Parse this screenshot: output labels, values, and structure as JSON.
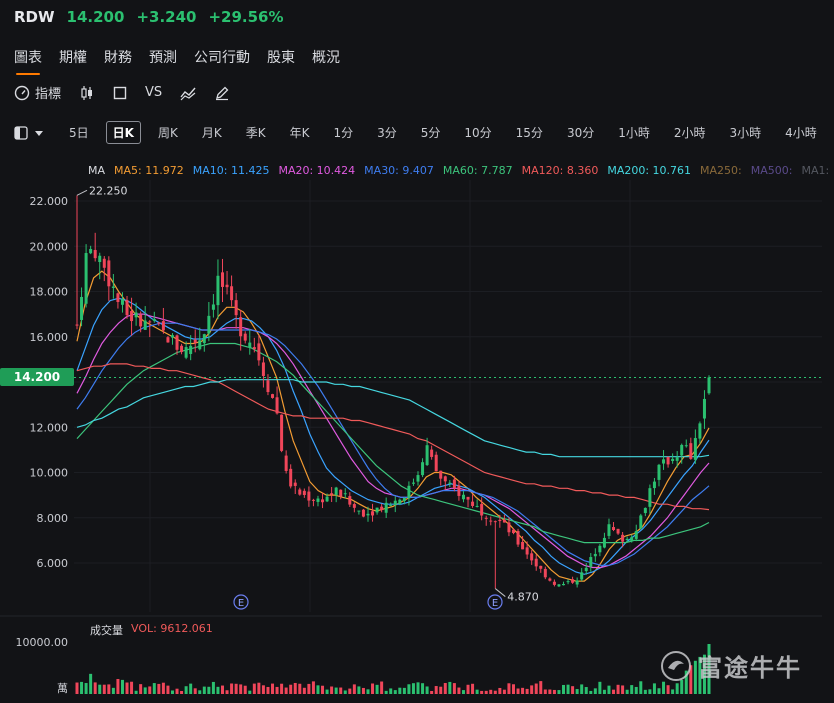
{
  "header": {
    "ticker": "RDW",
    "price": "14.200",
    "change": "+3.240",
    "change_pct": "+29.56%"
  },
  "tabs": [
    {
      "label": "圖表",
      "active": true
    },
    {
      "label": "期權"
    },
    {
      "label": "財務"
    },
    {
      "label": "預測"
    },
    {
      "label": "公司行動"
    },
    {
      "label": "股東"
    },
    {
      "label": "概況"
    }
  ],
  "toolbar": {
    "indicators": "指標",
    "vs": "VS"
  },
  "periods": [
    "5日",
    "日K",
    "周K",
    "月K",
    "季K",
    "年K",
    "1分",
    "3分",
    "5分",
    "10分",
    "15分",
    "30分",
    "1小時",
    "2小時",
    "3小時",
    "4小時"
  ],
  "active_period": "日K",
  "ma_legend": [
    {
      "label": "MA",
      "color": "#d9dbe0"
    },
    {
      "label": "MA5: 11.972",
      "color": "#f39c33"
    },
    {
      "label": "MA10: 11.425",
      "color": "#3aa3ff"
    },
    {
      "label": "MA20: 10.424",
      "color": "#e05ae0"
    },
    {
      "label": "MA30: 9.407",
      "color": "#3e7df0"
    },
    {
      "label": "MA60: 7.787",
      "color": "#3cc47c"
    },
    {
      "label": "MA120: 8.360",
      "color": "#f05a5a"
    },
    {
      "label": "MA200: 10.761",
      "color": "#45d7e0"
    },
    {
      "label": "MA250:",
      "color": "#8a6a3a"
    },
    {
      "label": "MA500:",
      "color": "#5a4a8a"
    },
    {
      "label": "MA1:",
      "color": "#555860"
    }
  ],
  "volume_legend": {
    "label": "成交量",
    "vol": "VOL: 9612.061"
  },
  "price_tag": "14.200",
  "annotations": {
    "high": "22.250",
    "low": "4.870",
    "earnings_marker": "E"
  },
  "volume_axis": {
    "tick": "10000.00",
    "unit": "萬"
  },
  "watermark": "富途牛牛",
  "chart_data": {
    "type": "candlestick",
    "y_ticks": [
      "22.000",
      "20.000",
      "18.000",
      "16.000",
      "14.000",
      "12.000",
      "10.000",
      "8.000",
      "6.000"
    ],
    "ylim": [
      4.5,
      23
    ],
    "high": 22.25,
    "low": 4.87,
    "last": 14.2,
    "close_path": [
      16.5,
      19.5,
      20.0,
      19.2,
      18.5,
      17.5,
      17.0,
      16.8,
      16.5,
      16.6,
      16.2,
      16.0,
      15.6,
      15.4,
      15.8,
      16.0,
      17.2,
      18.6,
      17.8,
      16.8,
      16.2,
      15.8,
      15.0,
      13.8,
      12.8,
      10.0,
      9.3,
      9.0,
      8.9,
      8.8,
      8.9,
      9.2,
      9.0,
      8.5,
      8.3,
      8.2,
      8.4,
      8.6,
      8.7,
      8.9,
      9.3,
      10.0,
      11.2,
      10.2,
      9.6,
      9.3,
      9.1,
      8.8,
      8.5,
      8.2,
      8.0,
      7.8,
      7.4,
      6.9,
      6.5,
      6.0,
      5.6,
      5.2,
      5.0,
      5.1,
      5.3,
      5.6,
      6.3,
      7.0,
      7.6,
      7.2,
      7.0,
      7.4,
      8.2,
      9.4,
      10.2,
      10.5,
      10.8,
      11.2,
      10.6,
      12.5,
      14.2
    ],
    "ma": {
      "MA5": [
        15.8,
        17.5,
        18.6,
        18.9,
        18.6,
        18.0,
        17.5,
        17.0,
        16.7,
        16.5,
        16.3,
        16.1,
        15.9,
        15.7,
        15.7,
        15.8,
        16.2,
        16.9,
        17.3,
        17.3,
        17.1,
        16.6,
        16.0,
        15.1,
        14.2,
        12.7,
        11.4,
        10.5,
        9.6,
        9.2,
        9.0,
        9.0,
        8.9,
        8.8,
        8.6,
        8.4,
        8.3,
        8.4,
        8.5,
        8.7,
        8.9,
        9.3,
        9.8,
        10.0,
        10.0,
        9.9,
        9.6,
        9.3,
        8.9,
        8.6,
        8.3,
        8.0,
        7.7,
        7.3,
        6.9,
        6.5,
        6.1,
        5.7,
        5.4,
        5.3,
        5.2,
        5.2,
        5.5,
        6.0,
        6.6,
        7.0,
        7.2,
        7.3,
        7.6,
        8.2,
        8.9,
        9.6,
        10.2,
        10.7,
        10.8,
        11.3,
        11.97
      ],
      "MA10": [
        14.5,
        15.5,
        16.5,
        17.2,
        17.6,
        17.7,
        17.6,
        17.4,
        17.1,
        16.8,
        16.6,
        16.4,
        16.2,
        16.0,
        15.9,
        15.9,
        16.0,
        16.3,
        16.6,
        16.8,
        16.8,
        16.7,
        16.4,
        16.0,
        15.4,
        14.6,
        13.6,
        12.7,
        11.7,
        10.9,
        10.2,
        9.8,
        9.5,
        9.2,
        9.0,
        8.8,
        8.7,
        8.6,
        8.6,
        8.6,
        8.7,
        8.9,
        9.1,
        9.3,
        9.4,
        9.5,
        9.4,
        9.3,
        9.1,
        8.9,
        8.6,
        8.3,
        8.0,
        7.7,
        7.4,
        7.0,
        6.7,
        6.3,
        6.0,
        5.8,
        5.6,
        5.5,
        5.6,
        5.8,
        6.1,
        6.5,
        6.9,
        7.2,
        7.5,
        7.9,
        8.4,
        8.9,
        9.4,
        9.9,
        10.3,
        10.9,
        11.43
      ],
      "MA20": [
        13.5,
        14.2,
        15.0,
        15.7,
        16.2,
        16.6,
        16.9,
        17.0,
        17.0,
        16.9,
        16.8,
        16.7,
        16.6,
        16.5,
        16.4,
        16.3,
        16.3,
        16.3,
        16.4,
        16.4,
        16.4,
        16.3,
        16.2,
        16.0,
        15.7,
        15.3,
        14.8,
        14.2,
        13.6,
        13.0,
        12.4,
        11.8,
        11.2,
        10.6,
        10.1,
        9.6,
        9.3,
        9.1,
        9.0,
        8.9,
        8.9,
        8.9,
        9.0,
        9.1,
        9.2,
        9.3,
        9.3,
        9.2,
        9.1,
        9.0,
        8.8,
        8.6,
        8.4,
        8.1,
        7.8,
        7.5,
        7.2,
        6.9,
        6.6,
        6.3,
        6.1,
        5.9,
        5.8,
        5.8,
        5.9,
        6.1,
        6.3,
        6.6,
        6.9,
        7.2,
        7.6,
        8.0,
        8.5,
        9.0,
        9.5,
        10.0,
        10.42
      ],
      "MA30": [
        12.8,
        13.3,
        13.9,
        14.5,
        15.0,
        15.5,
        15.9,
        16.2,
        16.4,
        16.5,
        16.6,
        16.6,
        16.6,
        16.5,
        16.4,
        16.3,
        16.3,
        16.3,
        16.3,
        16.3,
        16.3,
        16.3,
        16.2,
        16.1,
        15.9,
        15.6,
        15.2,
        14.8,
        14.3,
        13.8,
        13.2,
        12.6,
        12.0,
        11.4,
        10.8,
        10.2,
        9.7,
        9.3,
        9.0,
        8.9,
        8.9,
        8.9,
        9.0,
        9.1,
        9.2,
        9.2,
        9.2,
        9.2,
        9.1,
        9.0,
        8.9,
        8.7,
        8.5,
        8.3,
        8.0,
        7.7,
        7.4,
        7.1,
        6.8,
        6.5,
        6.3,
        6.1,
        6.0,
        5.9,
        5.9,
        6.0,
        6.2,
        6.4,
        6.7,
        7.0,
        7.3,
        7.6,
        8.0,
        8.4,
        8.8,
        9.1,
        9.41
      ],
      "MA60": [
        11.5,
        11.9,
        12.3,
        12.7,
        13.1,
        13.5,
        13.9,
        14.2,
        14.5,
        14.7,
        14.9,
        15.1,
        15.3,
        15.4,
        15.5,
        15.6,
        15.7,
        15.7,
        15.7,
        15.7,
        15.6,
        15.5,
        15.3,
        15.1,
        14.9,
        14.6,
        14.3,
        13.9,
        13.5,
        13.1,
        12.7,
        12.3,
        11.9,
        11.5,
        11.1,
        10.7,
        10.3,
        10.0,
        9.7,
        9.4,
        9.2,
        9.0,
        8.9,
        8.8,
        8.7,
        8.6,
        8.5,
        8.4,
        8.3,
        8.2,
        8.1,
        8.0,
        7.9,
        7.8,
        7.7,
        7.6,
        7.4,
        7.3,
        7.2,
        7.1,
        7.0,
        6.9,
        6.9,
        6.9,
        6.9,
        6.9,
        6.9,
        7.0,
        7.0,
        7.1,
        7.1,
        7.2,
        7.3,
        7.4,
        7.5,
        7.6,
        7.79
      ],
      "MA120": [
        14.5,
        14.6,
        14.7,
        14.7,
        14.8,
        14.8,
        14.8,
        14.7,
        14.7,
        14.6,
        14.6,
        14.5,
        14.5,
        14.4,
        14.3,
        14.2,
        14.1,
        14.0,
        13.8,
        13.6,
        13.4,
        13.2,
        13.0,
        12.8,
        12.7,
        12.6,
        12.5,
        12.5,
        12.4,
        12.4,
        12.4,
        12.4,
        12.4,
        12.3,
        12.3,
        12.2,
        12.1,
        12.0,
        11.9,
        11.8,
        11.7,
        11.5,
        11.4,
        11.2,
        11.0,
        10.8,
        10.6,
        10.4,
        10.2,
        10.0,
        9.9,
        9.8,
        9.7,
        9.6,
        9.5,
        9.5,
        9.4,
        9.4,
        9.3,
        9.3,
        9.2,
        9.2,
        9.1,
        9.1,
        9.0,
        9.0,
        8.9,
        8.9,
        8.8,
        8.7,
        8.6,
        8.6,
        8.5,
        8.5,
        8.4,
        8.4,
        8.36
      ],
      "MA200": [
        12.0,
        12.1,
        12.3,
        12.4,
        12.6,
        12.8,
        12.9,
        13.1,
        13.3,
        13.4,
        13.5,
        13.6,
        13.7,
        13.8,
        13.8,
        13.9,
        14.0,
        14.0,
        14.1,
        14.1,
        14.1,
        14.1,
        14.1,
        14.1,
        14.1,
        14.1,
        14.1,
        14.0,
        14.0,
        14.0,
        14.0,
        13.9,
        13.9,
        13.8,
        13.8,
        13.7,
        13.6,
        13.5,
        13.4,
        13.3,
        13.2,
        13.0,
        12.8,
        12.6,
        12.4,
        12.2,
        12.0,
        11.8,
        11.6,
        11.4,
        11.3,
        11.2,
        11.1,
        11.0,
        10.9,
        10.9,
        10.8,
        10.8,
        10.7,
        10.7,
        10.7,
        10.7,
        10.7,
        10.7,
        10.7,
        10.7,
        10.7,
        10.7,
        10.7,
        10.7,
        10.7,
        10.7,
        10.7,
        10.7,
        10.7,
        10.7,
        10.76
      ]
    }
  }
}
